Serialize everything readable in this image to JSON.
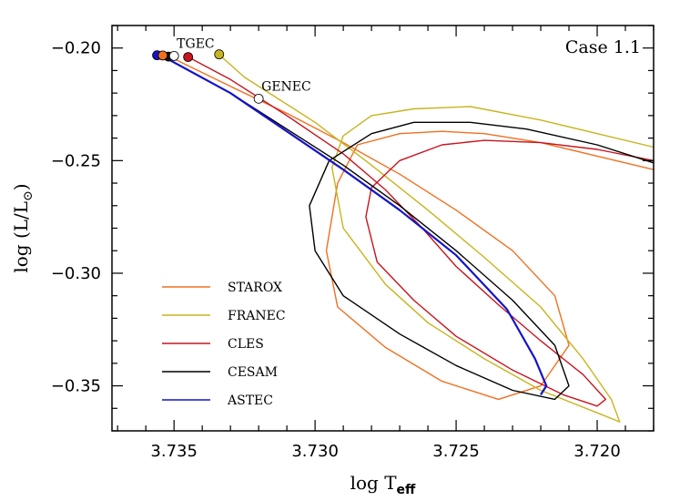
{
  "chart_data": {
    "type": "line",
    "title": "",
    "annotation": "Case 1.1",
    "xlabel": "log T",
    "xlabel_sub": "eff",
    "ylabel": "log (L/L",
    "ylabel_sub": "⊙",
    "ylabel_close": ")",
    "xlim": [
      3.7372,
      3.718
    ],
    "ylim": [
      -0.37,
      -0.19
    ],
    "x_ticks": [
      3.735,
      3.73,
      3.725,
      3.72
    ],
    "x_tick_labels": [
      "3.735",
      "3.730",
      "3.725",
      "3.720"
    ],
    "y_ticks": [
      -0.2,
      -0.25,
      -0.3,
      -0.35
    ],
    "y_tick_labels": [
      "−0.20",
      "−0.25",
      "−0.30",
      "−0.35"
    ],
    "grid": false,
    "legend_position": "bottom-left",
    "series": [
      {
        "name": "STAROX",
        "color": "#f07020",
        "x": [
          3.7353,
          3.733,
          3.731,
          3.729,
          3.727,
          3.725,
          3.723,
          3.7215,
          3.721,
          3.722,
          3.7235,
          3.7255,
          3.7275,
          3.7292,
          3.7296,
          3.7292,
          3.7285,
          3.727,
          3.7255,
          3.724,
          3.722,
          3.72,
          3.718
        ],
        "y": [
          -0.203,
          -0.217,
          -0.229,
          -0.242,
          -0.256,
          -0.272,
          -0.29,
          -0.31,
          -0.332,
          -0.35,
          -0.356,
          -0.348,
          -0.333,
          -0.315,
          -0.29,
          -0.26,
          -0.243,
          -0.238,
          -0.237,
          -0.238,
          -0.242,
          -0.248,
          -0.254
        ]
      },
      {
        "name": "FRANEC",
        "color": "#c8b41e",
        "x": [
          3.7334,
          3.7325,
          3.73,
          3.728,
          3.726,
          3.724,
          3.722,
          3.7205,
          3.7195,
          3.7192,
          3.72,
          3.722,
          3.724,
          3.726,
          3.7275,
          3.729,
          3.7294,
          3.729,
          3.728,
          3.7265,
          3.7245,
          3.722,
          3.72,
          3.718
        ],
        "y": [
          -0.203,
          -0.213,
          -0.233,
          -0.252,
          -0.272,
          -0.293,
          -0.315,
          -0.338,
          -0.356,
          -0.366,
          -0.362,
          -0.352,
          -0.338,
          -0.322,
          -0.305,
          -0.28,
          -0.253,
          -0.239,
          -0.23,
          -0.227,
          -0.226,
          -0.232,
          -0.238,
          -0.244
        ]
      },
      {
        "name": "CLES",
        "color": "#c8141e",
        "x": [
          3.7345,
          3.733,
          3.731,
          3.729,
          3.7275,
          3.7262,
          3.725,
          3.7235,
          3.722,
          3.7205,
          3.7197,
          3.72,
          3.7212,
          3.723,
          3.725,
          3.7265,
          3.7278,
          3.7282,
          3.728,
          3.727,
          3.7255,
          3.724,
          3.722,
          3.72,
          3.718
        ],
        "y": [
          -0.204,
          -0.214,
          -0.23,
          -0.247,
          -0.263,
          -0.28,
          -0.297,
          -0.314,
          -0.33,
          -0.345,
          -0.356,
          -0.359,
          -0.354,
          -0.343,
          -0.328,
          -0.312,
          -0.295,
          -0.275,
          -0.262,
          -0.25,
          -0.243,
          -0.241,
          -0.242,
          -0.245,
          -0.25
        ]
      },
      {
        "name": "CESAM",
        "color": "#000000",
        "x": [
          3.7352,
          3.733,
          3.731,
          3.729,
          3.727,
          3.725,
          3.723,
          3.7215,
          3.721,
          3.7215,
          3.723,
          3.725,
          3.727,
          3.729,
          3.73,
          3.7302,
          3.7295,
          3.728,
          3.7265,
          3.7245,
          3.7225,
          3.72,
          3.718
        ],
        "y": [
          -0.205,
          -0.22,
          -0.236,
          -0.252,
          -0.27,
          -0.29,
          -0.312,
          -0.332,
          -0.35,
          -0.356,
          -0.352,
          -0.341,
          -0.327,
          -0.31,
          -0.29,
          -0.27,
          -0.25,
          -0.238,
          -0.233,
          -0.233,
          -0.236,
          -0.243,
          -0.251
        ]
      },
      {
        "name": "ASTEC",
        "color": "#1414c8",
        "x": [
          3.7355,
          3.733,
          3.731,
          3.729,
          3.727,
          3.725,
          3.7232,
          3.7222,
          3.7218,
          3.722
        ],
        "y": [
          -0.203,
          -0.22,
          -0.237,
          -0.254,
          -0.272,
          -0.292,
          -0.316,
          -0.338,
          -0.35,
          -0.354
        ]
      }
    ],
    "markers": [
      {
        "x": 3.7356,
        "y": -0.2032,
        "fill": "#1414c8",
        "label": ""
      },
      {
        "x": 3.7352,
        "y": -0.2038,
        "fill": "#111111",
        "label": ""
      },
      {
        "x": 3.7354,
        "y": -0.2033,
        "fill": "#f07020",
        "label": ""
      },
      {
        "x": 3.735,
        "y": -0.2035,
        "fill": "#ffffff",
        "label": "TGEC"
      },
      {
        "x": 3.7345,
        "y": -0.204,
        "fill": "#c8141e",
        "label": ""
      },
      {
        "x": 3.7334,
        "y": -0.2028,
        "fill": "#c8b41e",
        "label": ""
      },
      {
        "x": 3.732,
        "y": -0.2225,
        "fill": "#ffffff",
        "label": "GENEC"
      }
    ]
  }
}
